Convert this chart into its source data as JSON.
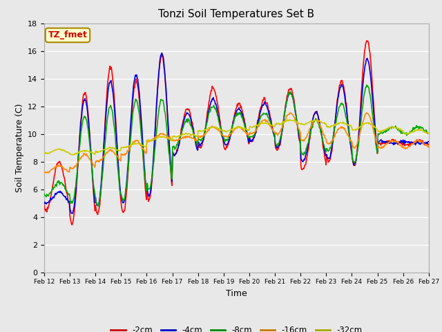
{
  "title": "Tonzi Soil Temperatures Set B",
  "xlabel": "Time",
  "ylabel": "Soil Temperature (C)",
  "ylim": [
    0,
    18
  ],
  "yticks": [
    0,
    2,
    4,
    6,
    8,
    10,
    12,
    14,
    16,
    18
  ],
  "plot_bg_color": "#e8e8e8",
  "grid_color": "#ffffff",
  "annotation_text": "TZ_fmet",
  "annotation_color": "#cc0000",
  "annotation_bg": "#ffffcc",
  "annotation_border": "#aa8800",
  "series_colors": [
    "#ff0000",
    "#0000dd",
    "#00aa00",
    "#ff8800",
    "#cccc00"
  ],
  "series_labels": [
    "-2cm",
    "-4cm",
    "-8cm",
    "-16cm",
    "-32cm"
  ],
  "series_lw": [
    1.2,
    1.2,
    1.2,
    1.2,
    1.2
  ],
  "x_tick_labels": [
    "Feb 12",
    "Feb 13",
    "Feb 14",
    "Feb 15",
    "Feb 16",
    "Feb 17",
    "Feb 18",
    "Feb 19",
    "Feb 20",
    "Feb 21",
    "Feb 22",
    "Feb 23",
    "Feb 24",
    "Feb 25",
    "Feb 26",
    "Feb 27"
  ],
  "legend_colors": [
    "#cc0000",
    "#0000cc",
    "#008800",
    "#cc7700",
    "#aaaa00"
  ]
}
